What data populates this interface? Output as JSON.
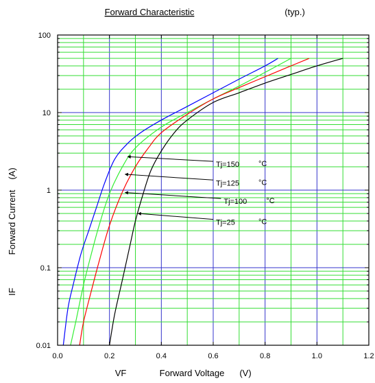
{
  "chart_data": {
    "type": "line",
    "title": "Forward Characteristic",
    "subtitle": "(typ.)",
    "xlabel": {
      "symbol": "VF",
      "text": "Forward Voltage",
      "unit": "(V)"
    },
    "ylabel": {
      "symbol": "IF",
      "text": "Forward Current",
      "unit": "(A)"
    },
    "xlim": [
      0,
      1.2
    ],
    "ylim": [
      0.01,
      100
    ],
    "yscale": "log",
    "grid": true,
    "x_ticks": [
      "0.0",
      "0.2",
      "0.4",
      "0.6",
      "0.8",
      "1.0",
      "1.2"
    ],
    "y_ticks": [
      "0.01",
      "0.1",
      "1",
      "10",
      "100"
    ],
    "colors": {
      "minor_grid": "#33dd33",
      "major_grid": "#3333cc",
      "tj150": "#0000ff",
      "tj125": "#33ee33",
      "tj100": "#ff0000",
      "tj25": "#000000"
    },
    "series": [
      {
        "name": "Tj=150 °C",
        "label": "Tj=150",
        "unit": "°C",
        "color": "#0000ff",
        "x": [
          0.022,
          0.04,
          0.06,
          0.09,
          0.12,
          0.15,
          0.18,
          0.22,
          0.27,
          0.32,
          0.4,
          0.5,
          0.6,
          0.7,
          0.8,
          0.85
        ],
        "y": [
          0.01,
          0.03,
          0.06,
          0.15,
          0.3,
          0.6,
          1.2,
          2.5,
          4,
          5.5,
          8,
          12,
          18,
          27,
          40,
          50
        ]
      },
      {
        "name": "Tj=125 °C",
        "label": "Tj=125",
        "unit": "°C",
        "color": "#33ee33",
        "x": [
          0.05,
          0.07,
          0.1,
          0.13,
          0.16,
          0.2,
          0.25,
          0.3,
          0.4,
          0.5,
          0.6,
          0.7,
          0.8,
          0.9
        ],
        "y": [
          0.01,
          0.02,
          0.06,
          0.15,
          0.35,
          0.9,
          2,
          3.5,
          6.5,
          10,
          15,
          22,
          33,
          50
        ]
      },
      {
        "name": "Tj=100 °C",
        "label": "Tj=100",
        "unit": "°C",
        "color": "#ff0000",
        "x": [
          0.085,
          0.1,
          0.13,
          0.16,
          0.2,
          0.25,
          0.3,
          0.35,
          0.4,
          0.5,
          0.6,
          0.7,
          0.8,
          0.9,
          0.97
        ],
        "y": [
          0.01,
          0.02,
          0.05,
          0.12,
          0.35,
          0.95,
          2,
          3.5,
          5.5,
          9.5,
          15,
          21,
          29,
          40,
          50
        ]
      },
      {
        "name": "Tj=25 °C",
        "label": "Tj=25",
        "unit": "°C",
        "color": "#000000",
        "x": [
          0.2,
          0.22,
          0.25,
          0.28,
          0.3,
          0.33,
          0.36,
          0.4,
          0.45,
          0.5,
          0.6,
          0.7,
          0.8,
          0.9,
          1.0,
          1.1
        ],
        "y": [
          0.01,
          0.025,
          0.07,
          0.2,
          0.4,
          0.9,
          1.8,
          3.2,
          5.5,
          8,
          13.5,
          18,
          24,
          31,
          40,
          50
        ]
      }
    ],
    "annotations": [
      {
        "series": 0,
        "label": "Tj=150",
        "unit": "°C",
        "from": [
          0.6,
          2.35
        ],
        "to": [
          0.27,
          2.7
        ]
      },
      {
        "series": 1,
        "label": "Tj=125",
        "unit": "°C",
        "from": [
          0.6,
          1.35
        ],
        "to": [
          0.26,
          1.6
        ]
      },
      {
        "series": 2,
        "label": "Tj=100",
        "unit": "°C",
        "from": [
          0.63,
          0.78
        ],
        "to": [
          0.26,
          0.93
        ]
      },
      {
        "series": 3,
        "label": "Tj=25",
        "unit": "°C",
        "from": [
          0.6,
          0.42
        ],
        "to": [
          0.31,
          0.5
        ]
      }
    ]
  }
}
